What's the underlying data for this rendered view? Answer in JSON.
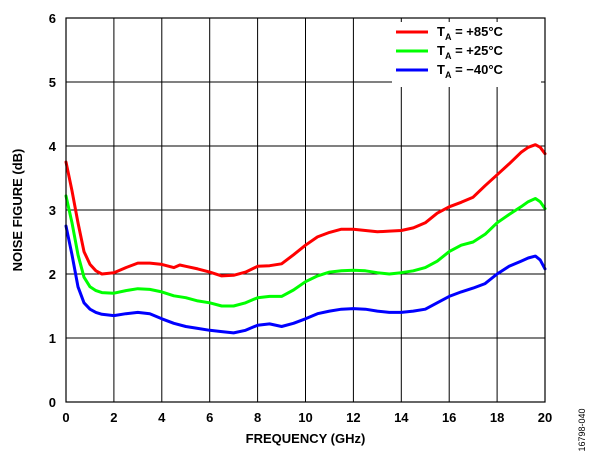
{
  "figure_id": "16798-040",
  "chart_data": {
    "type": "line",
    "xlabel": "FREQUENCY (GHz)",
    "ylabel": "NOISE FIGURE (dB)",
    "xlim": [
      0,
      20
    ],
    "ylim": [
      0,
      6
    ],
    "xticks": [
      0,
      2,
      4,
      6,
      8,
      10,
      12,
      14,
      16,
      18,
      20
    ],
    "yticks": [
      0,
      1,
      2,
      3,
      4,
      5,
      6
    ],
    "grid": true,
    "legend_position": "top-right",
    "series": [
      {
        "name": "TA = +85°C",
        "name_main": "T",
        "name_sub": "A",
        "name_rest": " = +85°C",
        "color": "#ff0000",
        "x": [
          0,
          0.25,
          0.5,
          0.75,
          1,
          1.25,
          1.5,
          2,
          2.5,
          3,
          3.5,
          4,
          4.5,
          4.75,
          5,
          5.5,
          6,
          6.5,
          7,
          7.5,
          8,
          8.5,
          9,
          9.5,
          10,
          10.5,
          11,
          11.5,
          12,
          12.5,
          13,
          13.5,
          14,
          14.5,
          15,
          15.5,
          16,
          16.5,
          17,
          17.5,
          18,
          18.5,
          19,
          19.3,
          19.6,
          19.8,
          20
        ],
        "y": [
          3.75,
          3.3,
          2.8,
          2.35,
          2.15,
          2.05,
          2.0,
          2.02,
          2.1,
          2.17,
          2.17,
          2.15,
          2.1,
          2.14,
          2.12,
          2.08,
          2.03,
          1.97,
          1.98,
          2.03,
          2.12,
          2.13,
          2.16,
          2.3,
          2.45,
          2.58,
          2.65,
          2.7,
          2.7,
          2.68,
          2.66,
          2.67,
          2.68,
          2.72,
          2.8,
          2.95,
          3.05,
          3.12,
          3.2,
          3.38,
          3.55,
          3.72,
          3.9,
          3.98,
          4.02,
          3.98,
          3.88
        ]
      },
      {
        "name": "TA = +25°C",
        "name_main": "T",
        "name_sub": "A",
        "name_rest": " = +25°C",
        "color": "#00ff00",
        "x": [
          0,
          0.25,
          0.5,
          0.75,
          1,
          1.25,
          1.5,
          2,
          2.5,
          3,
          3.5,
          4,
          4.5,
          5,
          5.5,
          6,
          6.5,
          7,
          7.5,
          8,
          8.5,
          9,
          9.5,
          10,
          10.5,
          11,
          11.5,
          12,
          12.5,
          13,
          13.5,
          14,
          14.5,
          15,
          15.5,
          16,
          16.5,
          17,
          17.5,
          18,
          18.5,
          19,
          19.3,
          19.6,
          19.8,
          20
        ],
        "y": [
          3.22,
          2.8,
          2.3,
          1.95,
          1.8,
          1.74,
          1.71,
          1.7,
          1.74,
          1.77,
          1.76,
          1.72,
          1.66,
          1.63,
          1.58,
          1.55,
          1.5,
          1.5,
          1.55,
          1.63,
          1.65,
          1.65,
          1.75,
          1.88,
          1.97,
          2.03,
          2.05,
          2.06,
          2.05,
          2.02,
          2.0,
          2.02,
          2.05,
          2.1,
          2.2,
          2.35,
          2.45,
          2.5,
          2.62,
          2.8,
          2.93,
          3.05,
          3.13,
          3.18,
          3.13,
          3.02
        ]
      },
      {
        "name": "TA = −40°C",
        "name_main": "T",
        "name_sub": "A",
        "name_rest": " = −40°C",
        "color": "#0000ff",
        "x": [
          0,
          0.25,
          0.5,
          0.75,
          1,
          1.25,
          1.5,
          2,
          2.5,
          3,
          3.5,
          4,
          4.5,
          5,
          5.5,
          6,
          6.5,
          7,
          7.5,
          8,
          8.5,
          9,
          9.5,
          10,
          10.5,
          11,
          11.5,
          12,
          12.5,
          13,
          13.5,
          14,
          14.5,
          15,
          15.5,
          16,
          16.5,
          17,
          17.5,
          18,
          18.5,
          19,
          19.3,
          19.6,
          19.8,
          20
        ],
        "y": [
          2.75,
          2.3,
          1.8,
          1.55,
          1.45,
          1.4,
          1.37,
          1.35,
          1.38,
          1.4,
          1.38,
          1.3,
          1.23,
          1.18,
          1.15,
          1.12,
          1.1,
          1.08,
          1.12,
          1.2,
          1.22,
          1.18,
          1.23,
          1.3,
          1.38,
          1.42,
          1.45,
          1.46,
          1.45,
          1.42,
          1.4,
          1.4,
          1.42,
          1.45,
          1.55,
          1.65,
          1.72,
          1.78,
          1.85,
          2.0,
          2.12,
          2.2,
          2.25,
          2.28,
          2.22,
          2.08
        ]
      }
    ]
  }
}
